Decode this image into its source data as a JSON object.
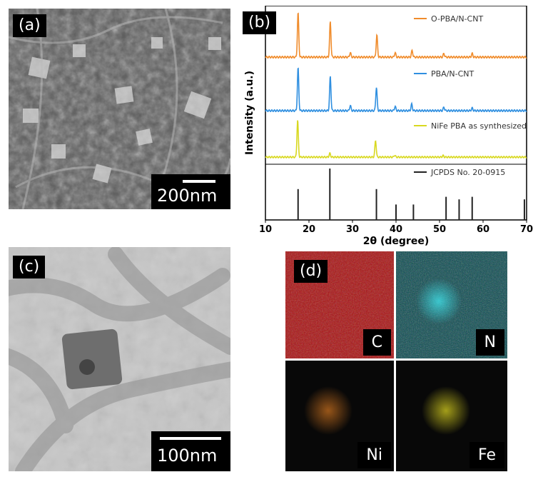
{
  "panels": {
    "a": {
      "tag": "(a)",
      "scale": "200nm"
    },
    "b": {
      "tag": "(b)"
    },
    "c": {
      "tag": "(c)",
      "scale": "100nm"
    },
    "d": {
      "tag": "(d)",
      "maps": [
        {
          "label": "C",
          "color": "#c01818"
        },
        {
          "label": "N",
          "color": "#20a8b0"
        },
        {
          "label": "Ni",
          "color": "#b8601a"
        },
        {
          "label": "Fe",
          "color": "#c8c020"
        }
      ]
    }
  },
  "chart_data": {
    "type": "line",
    "xlabel": "2θ (degree)",
    "ylabel": "Intensity (a.u.)",
    "xlim": [
      10,
      70
    ],
    "xticks": [
      10,
      20,
      30,
      40,
      50,
      60,
      70
    ],
    "series": [
      {
        "name": "O-PBA/N-CNT",
        "color": "#f08c2c",
        "peaks": [
          [
            17.5,
            1.0
          ],
          [
            24.9,
            0.8
          ],
          [
            29.5,
            0.1
          ],
          [
            35.6,
            0.5
          ],
          [
            39.8,
            0.1
          ],
          [
            43.7,
            0.15
          ],
          [
            51.0,
            0.08
          ],
          [
            57.5,
            0.08
          ]
        ]
      },
      {
        "name": "PBA/N-CNT",
        "color": "#2f8fe0",
        "peaks": [
          [
            17.5,
            1.0
          ],
          [
            24.9,
            0.8
          ],
          [
            29.5,
            0.12
          ],
          [
            35.5,
            0.55
          ],
          [
            39.8,
            0.1
          ],
          [
            43.6,
            0.15
          ],
          [
            51.0,
            0.08
          ],
          [
            57.5,
            0.06
          ]
        ]
      },
      {
        "name": "NiFe PBA as synthesized",
        "color": "#d8d820",
        "peaks": [
          [
            17.4,
            1.0
          ],
          [
            24.8,
            0.1
          ],
          [
            35.3,
            0.45
          ],
          [
            39.7,
            0.05
          ],
          [
            50.8,
            0.04
          ]
        ]
      },
      {
        "name": "JCPDS No. 20-0915",
        "color": "#222222",
        "sticks": [
          [
            17.5,
            0.6
          ],
          [
            24.8,
            1.0
          ],
          [
            35.5,
            0.6
          ],
          [
            40.0,
            0.3
          ],
          [
            44.0,
            0.3
          ],
          [
            51.5,
            0.45
          ],
          [
            54.5,
            0.4
          ],
          [
            57.5,
            0.45
          ],
          [
            69.5,
            0.4
          ]
        ]
      }
    ]
  }
}
